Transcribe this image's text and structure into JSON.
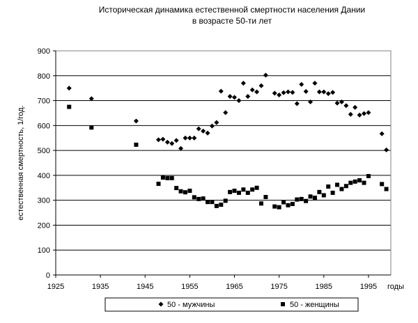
{
  "chart_data": {
    "type": "scatter",
    "title_lines": [
      "Историческая динамика естественной смертности  населения Дании",
      "в возрасте 50-ти лет"
    ],
    "ylabel": "естественная смертность, 1/год.",
    "xlabel": "годы",
    "xlim": [
      1925,
      2000
    ],
    "ylim": [
      0,
      900
    ],
    "x_ticks": [
      1925,
      1935,
      1945,
      1955,
      1965,
      1975,
      1985,
      1995
    ],
    "y_ticks": [
      0,
      100,
      200,
      300,
      400,
      500,
      600,
      700,
      800,
      900
    ],
    "grid": "horizontal",
    "legend_position": "bottom",
    "series": [
      {
        "name": "50 - мужчины",
        "marker": "diamond",
        "color": "#000000",
        "points": [
          [
            1928,
            750
          ],
          [
            1933,
            708
          ],
          [
            1943,
            618
          ],
          [
            1948,
            543
          ],
          [
            1949,
            545
          ],
          [
            1950,
            533
          ],
          [
            1951,
            528
          ],
          [
            1952,
            540
          ],
          [
            1953,
            508
          ],
          [
            1954,
            550
          ],
          [
            1955,
            550
          ],
          [
            1956,
            550
          ],
          [
            1957,
            587
          ],
          [
            1958,
            578
          ],
          [
            1959,
            570
          ],
          [
            1960,
            598
          ],
          [
            1961,
            612
          ],
          [
            1962,
            738
          ],
          [
            1963,
            652
          ],
          [
            1964,
            717
          ],
          [
            1965,
            713
          ],
          [
            1966,
            700
          ],
          [
            1967,
            770
          ],
          [
            1968,
            717
          ],
          [
            1969,
            743
          ],
          [
            1970,
            735
          ],
          [
            1971,
            760
          ],
          [
            1972,
            802
          ],
          [
            1974,
            730
          ],
          [
            1975,
            723
          ],
          [
            1976,
            732
          ],
          [
            1977,
            735
          ],
          [
            1978,
            733
          ],
          [
            1979,
            688
          ],
          [
            1980,
            765
          ],
          [
            1981,
            737
          ],
          [
            1982,
            695
          ],
          [
            1983,
            770
          ],
          [
            1984,
            735
          ],
          [
            1985,
            735
          ],
          [
            1986,
            728
          ],
          [
            1987,
            733
          ],
          [
            1988,
            690
          ],
          [
            1989,
            695
          ],
          [
            1990,
            680
          ],
          [
            1991,
            645
          ],
          [
            1992,
            673
          ],
          [
            1993,
            642
          ],
          [
            1994,
            648
          ],
          [
            1995,
            652
          ],
          [
            1998,
            567
          ],
          [
            1999,
            502
          ]
        ]
      },
      {
        "name": "50 - женщины",
        "marker": "square",
        "color": "#000000",
        "points": [
          [
            1928,
            675
          ],
          [
            1933,
            592
          ],
          [
            1943,
            523
          ],
          [
            1948,
            366
          ],
          [
            1949,
            391
          ],
          [
            1950,
            389
          ],
          [
            1951,
            389
          ],
          [
            1952,
            349
          ],
          [
            1953,
            336
          ],
          [
            1954,
            332
          ],
          [
            1955,
            338
          ],
          [
            1956,
            312
          ],
          [
            1957,
            305
          ],
          [
            1958,
            307
          ],
          [
            1959,
            293
          ],
          [
            1960,
            293
          ],
          [
            1961,
            277
          ],
          [
            1962,
            282
          ],
          [
            1963,
            298
          ],
          [
            1964,
            333
          ],
          [
            1965,
            338
          ],
          [
            1966,
            330
          ],
          [
            1967,
            343
          ],
          [
            1968,
            330
          ],
          [
            1969,
            343
          ],
          [
            1970,
            350
          ],
          [
            1971,
            287
          ],
          [
            1972,
            313
          ],
          [
            1974,
            275
          ],
          [
            1975,
            272
          ],
          [
            1976,
            292
          ],
          [
            1977,
            280
          ],
          [
            1978,
            285
          ],
          [
            1979,
            303
          ],
          [
            1980,
            305
          ],
          [
            1981,
            297
          ],
          [
            1982,
            315
          ],
          [
            1983,
            310
          ],
          [
            1984,
            333
          ],
          [
            1985,
            320
          ],
          [
            1986,
            355
          ],
          [
            1987,
            330
          ],
          [
            1988,
            362
          ],
          [
            1989,
            345
          ],
          [
            1990,
            357
          ],
          [
            1991,
            370
          ],
          [
            1992,
            375
          ],
          [
            1993,
            380
          ],
          [
            1994,
            370
          ],
          [
            1995,
            397
          ],
          [
            1998,
            365
          ],
          [
            1999,
            345
          ]
        ]
      }
    ]
  }
}
